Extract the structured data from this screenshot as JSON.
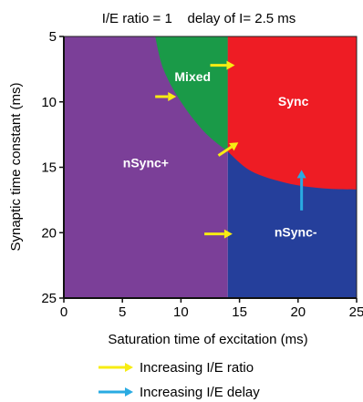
{
  "chart_data": {
    "type": "heatmap",
    "title": "I/E ratio = 1    delay of I= 2.5 ms",
    "xlabel": "Saturation time of excitation (ms)",
    "ylabel": "Synaptic time constant (ms)",
    "xlim": [
      0,
      25
    ],
    "ylim": [
      25,
      5
    ],
    "y_axis_inverted": true,
    "xticks": [
      0,
      5,
      10,
      15,
      20,
      25
    ],
    "yticks": [
      5,
      10,
      15,
      20,
      25
    ],
    "grid": false,
    "regions": [
      {
        "label": "nSync+",
        "color": "#7b3f98"
      },
      {
        "label": "Mixed",
        "color": "#1a9a48"
      },
      {
        "label": "Sync",
        "color": "#ee1c24"
      },
      {
        "label": "nSync-",
        "color": "#253f9b"
      }
    ],
    "boundaries": {
      "vertical_split_x": 14,
      "purple_green_arc": [
        [
          7.8,
          5
        ],
        [
          8.5,
          7.5
        ],
        [
          10,
          10
        ],
        [
          12,
          12.3
        ],
        [
          14,
          13.8
        ]
      ],
      "red_blue_arc": [
        [
          14,
          13.8
        ],
        [
          16,
          15.3
        ],
        [
          19,
          16.2
        ],
        [
          22,
          16.6
        ],
        [
          25,
          16.7
        ]
      ]
    },
    "annotations": {
      "yellow_arrows": [
        {
          "from": [
            12.5,
            7.2
          ],
          "to": [
            14.6,
            7.2
          ]
        },
        {
          "from": [
            7.8,
            9.6
          ],
          "to": [
            9.6,
            9.6
          ]
        },
        {
          "from": [
            13.2,
            14.1
          ],
          "to": [
            14.9,
            13.1
          ]
        },
        {
          "from": [
            12,
            20.1
          ],
          "to": [
            14.4,
            20.1
          ]
        }
      ],
      "blue_arrows": [
        {
          "from": [
            20.3,
            18.3
          ],
          "to": [
            20.3,
            15.2
          ]
        }
      ]
    },
    "legend": {
      "position": "bottom",
      "entries": [
        {
          "label": "Increasing I/E ratio",
          "color": "#f7ec13"
        },
        {
          "label": "Increasing I/E delay",
          "color": "#29abe2"
        }
      ]
    }
  }
}
